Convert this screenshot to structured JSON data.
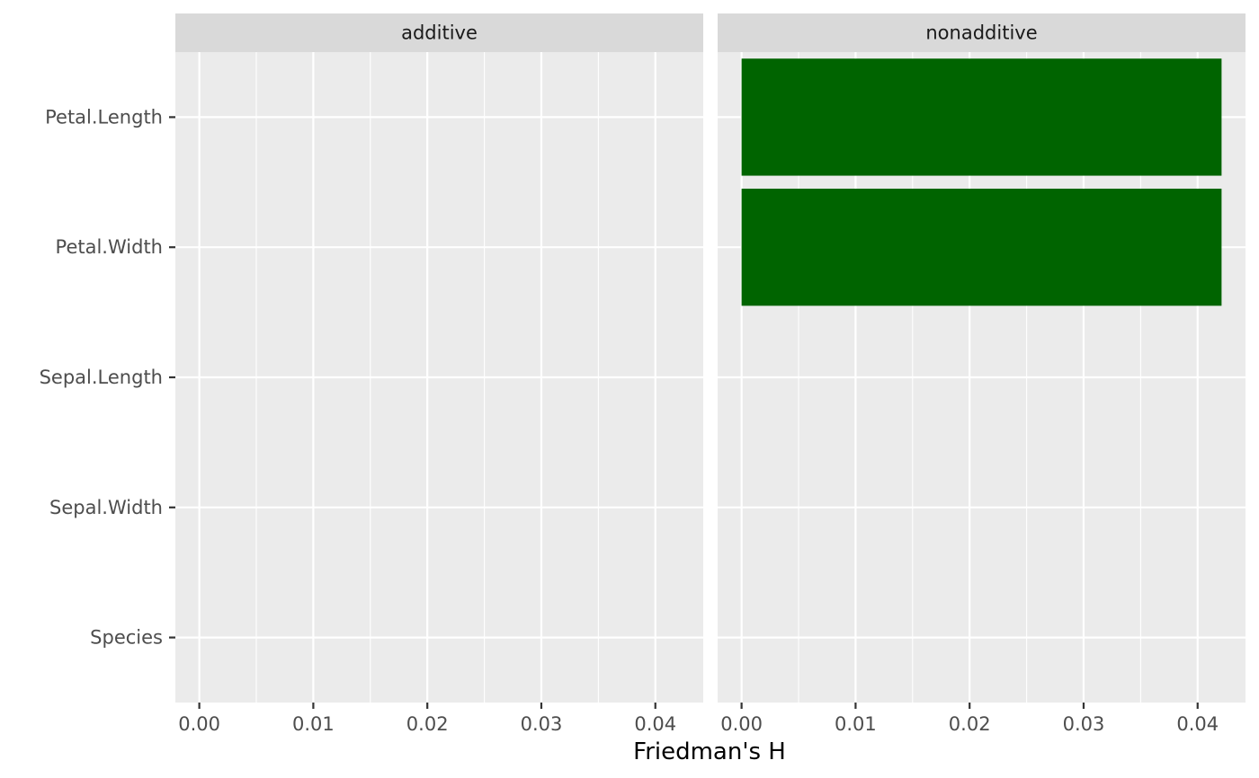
{
  "chart_data": {
    "type": "bar",
    "orientation": "horizontal",
    "xlabel": "Friedman's H",
    "ylabel": "",
    "xlim": [
      -0.0021,
      0.0442
    ],
    "x_ticks": [
      0.0,
      0.01,
      0.02,
      0.03,
      0.04
    ],
    "x_tick_labels": [
      "0.00",
      "0.01",
      "0.02",
      "0.03",
      "0.04"
    ],
    "categories": [
      "Petal.Length",
      "Petal.Width",
      "Sepal.Length",
      "Sepal.Width",
      "Species"
    ],
    "facets": [
      {
        "label": "additive",
        "values": [
          0,
          0,
          0,
          0,
          0
        ]
      },
      {
        "label": "nonadditive",
        "values": [
          0.0421,
          0.0421,
          0,
          0,
          0
        ]
      }
    ],
    "bar_color": "#006400",
    "panel_background": "#ebebeb",
    "strip_background": "#d9d9d9",
    "grid": true,
    "legend": "none"
  }
}
